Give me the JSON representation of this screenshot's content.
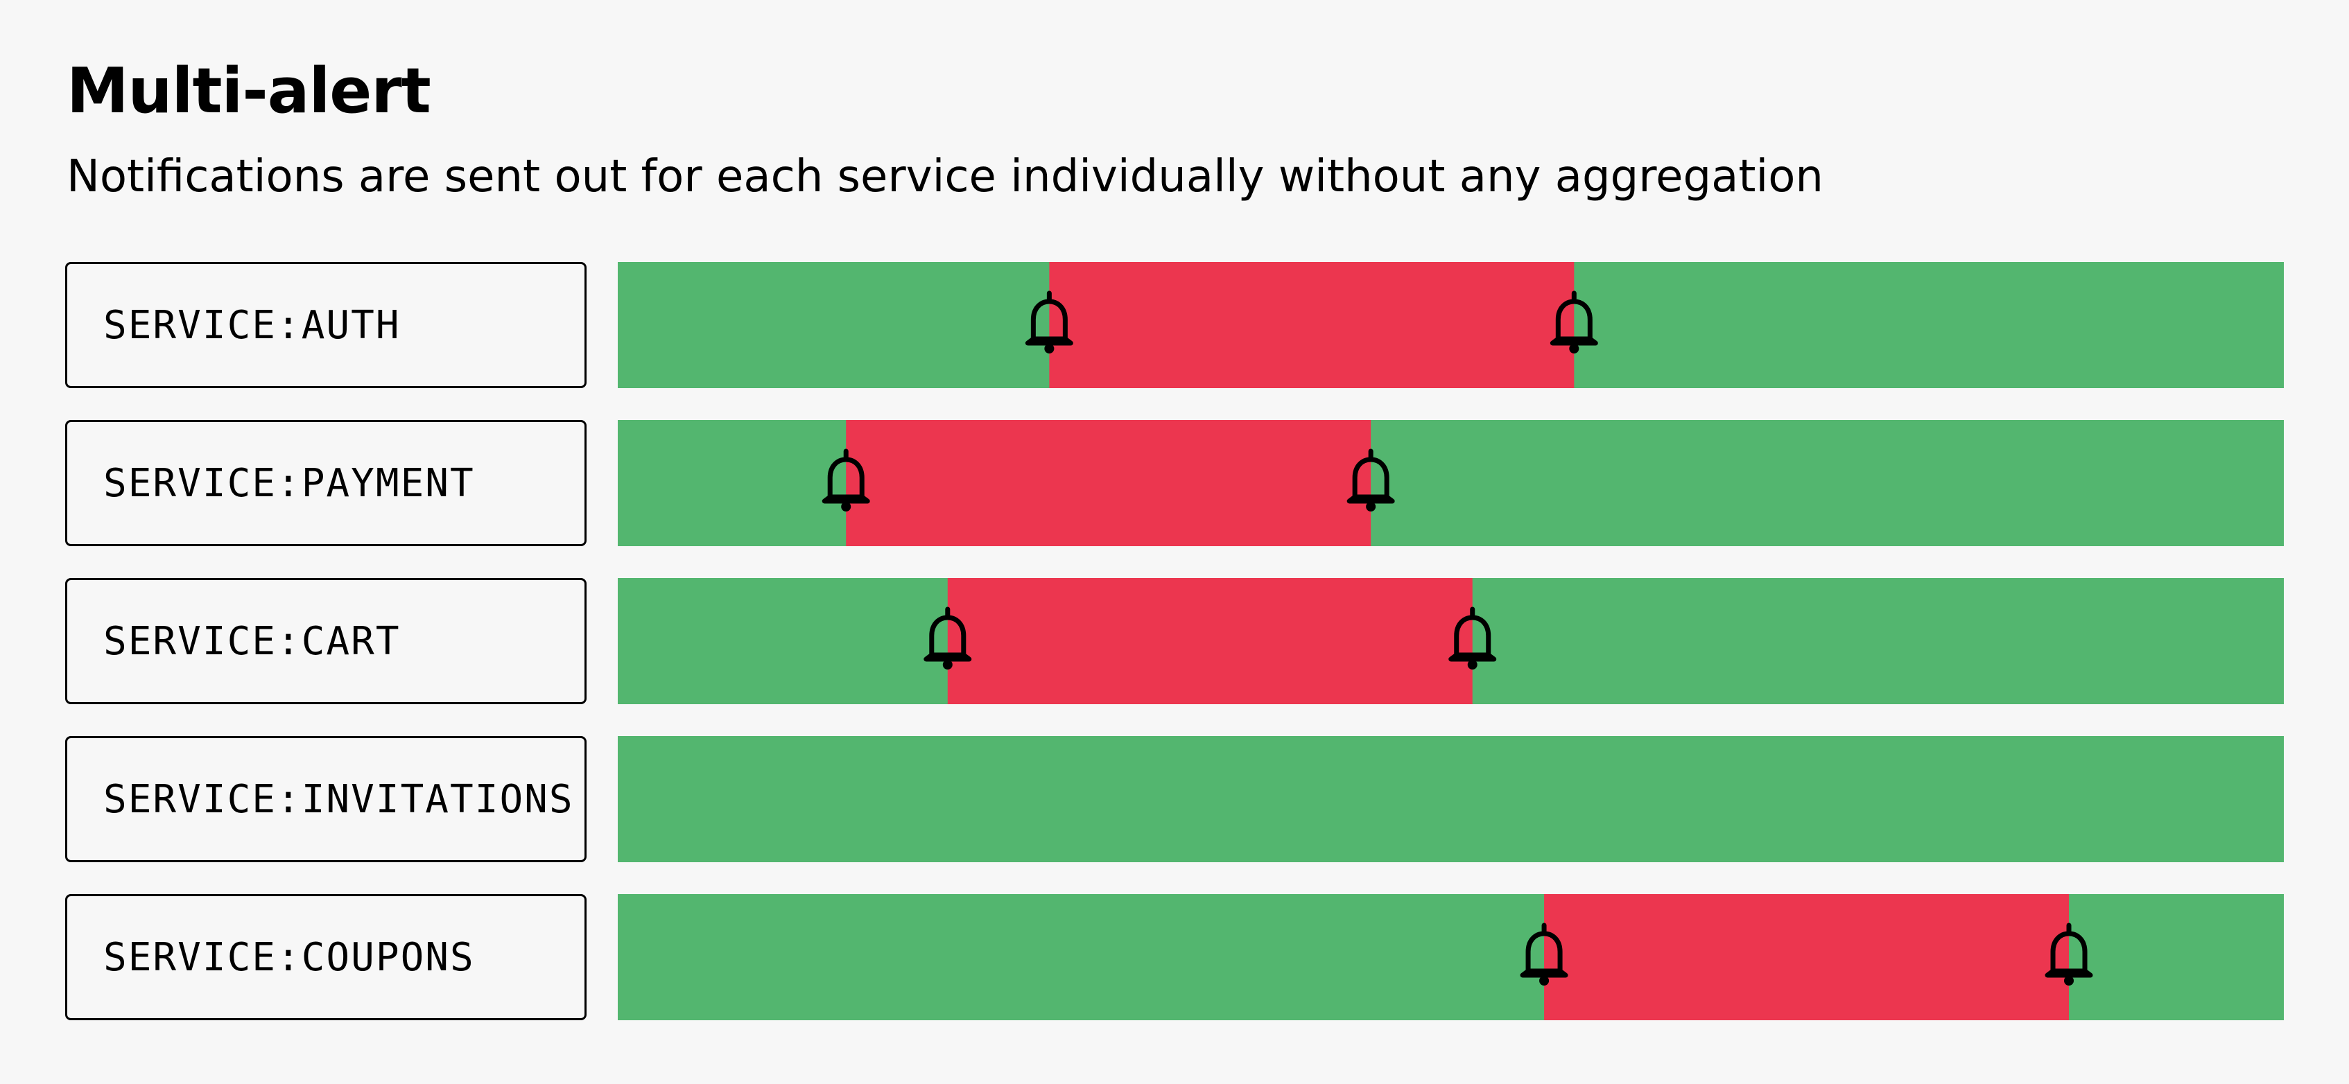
{
  "header": {
    "title": "Multi-alert",
    "subtitle": "Notifications are sent out for each service individually without any aggregation"
  },
  "colors": {
    "ok": "#53b66f",
    "alert": "#ec364f",
    "background": "#f7f7f7",
    "ink": "#000000"
  },
  "services": [
    {
      "label": "SERVICE:AUTH",
      "incidents": [
        {
          "start": 0.259,
          "end": 0.574
        }
      ]
    },
    {
      "label": "SERVICE:PAYMENT",
      "incidents": [
        {
          "start": 0.137,
          "end": 0.452
        }
      ]
    },
    {
      "label": "SERVICE:CART",
      "incidents": [
        {
          "start": 0.198,
          "end": 0.513
        }
      ]
    },
    {
      "label": "SERVICE:INVITATIONS",
      "incidents": []
    },
    {
      "label": "SERVICE:COUPONS",
      "incidents": [
        {
          "start": 0.556,
          "end": 0.871
        }
      ]
    }
  ]
}
